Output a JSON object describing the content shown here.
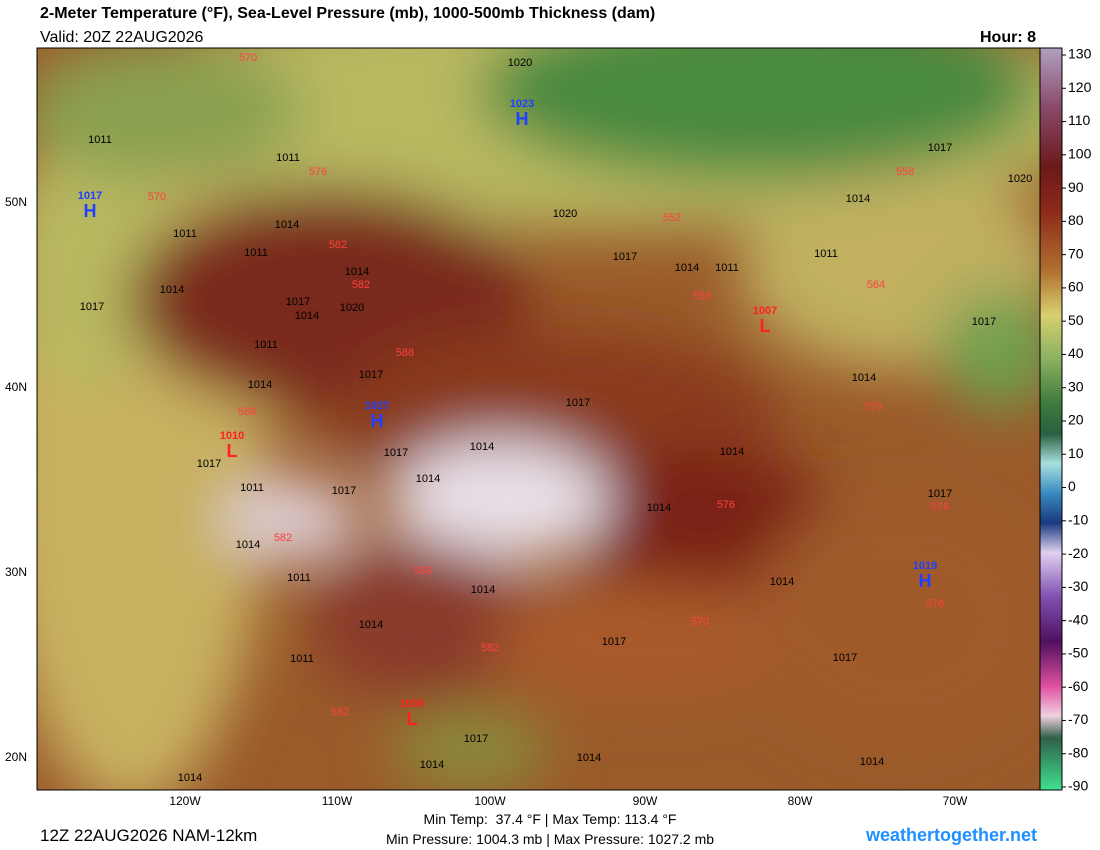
{
  "header": {
    "title": "2-Meter Temperature (°F), Sea-Level Pressure (mb), 1000-500mb Thickness (dam)",
    "valid": "Valid: 20Z 22AUG2026",
    "hour": "Hour: 8"
  },
  "map": {
    "lon_labels": [
      "120W",
      "110W",
      "100W",
      "90W",
      "80W",
      "70W"
    ],
    "lat_labels": [
      "50N",
      "40N",
      "30N",
      "20N"
    ],
    "highs": [
      {
        "symbol": "H",
        "pressure": "1017"
      },
      {
        "symbol": "H",
        "pressure": "1023"
      },
      {
        "symbol": "H",
        "pressure": "1027"
      },
      {
        "symbol": "H",
        "pressure": "1019"
      }
    ],
    "lows": [
      {
        "symbol": "L",
        "pressure": "1010"
      },
      {
        "symbol": "L",
        "pressure": "1007"
      },
      {
        "symbol": "L",
        "pressure": "1005"
      }
    ],
    "isobar_labels": [
      "1011",
      "1011",
      "1014",
      "1011",
      "1011",
      "1014",
      "1017",
      "1014",
      "1017",
      "1020",
      "1014",
      "1011",
      "1014",
      "1017",
      "1017",
      "1014",
      "1014",
      "1017",
      "1014",
      "1011",
      "1017",
      "1017",
      "1014",
      "1017",
      "1014",
      "1011",
      "1014",
      "1014",
      "1014",
      "1017",
      "1011",
      "1017",
      "1017",
      "1014",
      "1014",
      "1014",
      "1014",
      "1020",
      "1017",
      "1020",
      "1014",
      "1011",
      "1017",
      "1014",
      "1011",
      "1017",
      "1014",
      "1020"
    ],
    "thickness_labels": [
      "570",
      "576",
      "570",
      "558",
      "552",
      "564",
      "582",
      "582",
      "588",
      "558",
      "588",
      "570",
      "576",
      "576",
      "582",
      "588",
      "582",
      "570",
      "576",
      "582"
    ]
  },
  "colorbar": {
    "ticks": [
      130,
      120,
      110,
      100,
      90,
      80,
      70,
      60,
      50,
      40,
      30,
      20,
      10,
      0,
      -10,
      -20,
      -30,
      -40,
      -50,
      -60,
      -70,
      -80,
      -90
    ]
  },
  "footer": {
    "run": "12Z 22AUG2026 NAM-12km",
    "temps": "Min Temp:  37.4 °F | Max Temp: 113.4 °F",
    "pressures": "Min Pressure: 1004.3 mb | Max Pressure: 1027.2 mb",
    "site": "weathertogether.net"
  }
}
